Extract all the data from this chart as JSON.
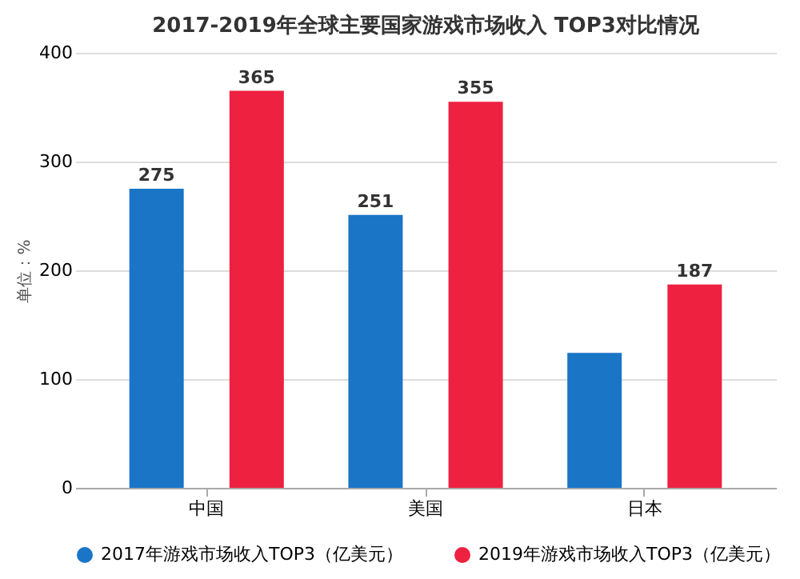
{
  "chart_data": {
    "type": "bar",
    "title": "2017-2019年全球主要国家游戏市场收入 TOP3对比情况",
    "categories": [
      "中国",
      "美国",
      "日本"
    ],
    "ylabel": "单位：%",
    "series": [
      {
        "name": "2017年游戏市场收入TOP3（亿美元）",
        "color": "#1a75c7",
        "values": [
          275,
          251,
          124
        ],
        "value_labels": [
          "275",
          "251",
          null
        ]
      },
      {
        "name": "2019年游戏市场收入TOP3（亿美元）",
        "color": "#ee2140",
        "values": [
          365,
          355,
          187
        ],
        "value_labels": [
          "365",
          "355",
          "187"
        ]
      }
    ],
    "ylim": [
      0,
      400
    ],
    "yticks": [
      0,
      100,
      200,
      300,
      400
    ],
    "grid": "y",
    "legend": "bottom"
  }
}
